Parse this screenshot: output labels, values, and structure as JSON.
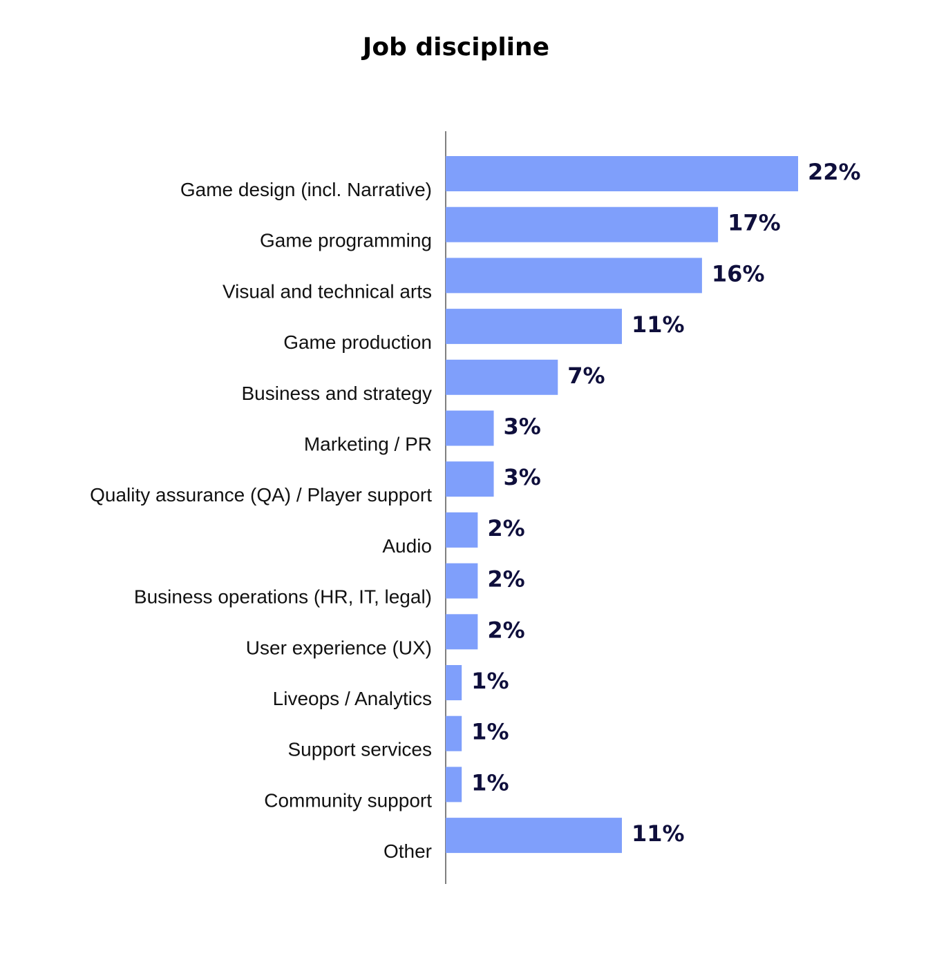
{
  "chart_data": {
    "type": "bar",
    "orientation": "horizontal",
    "title": "Job discipline",
    "xlabel": "",
    "ylabel": "",
    "categories": [
      "Game design (incl. Narrative)",
      "Game programming",
      "Visual and technical arts",
      "Game production",
      "Business and strategy",
      "Marketing / PR",
      "Quality assurance (QA) / Player support",
      "Audio",
      "Business operations (HR, IT, legal)",
      "User experience (UX)",
      "Liveops / Analytics",
      "Support services",
      "Community support",
      "Other"
    ],
    "values": [
      22,
      17,
      16,
      11,
      7,
      3,
      3,
      2,
      2,
      2,
      1,
      1,
      1,
      11
    ],
    "value_labels": [
      "22%",
      "17%",
      "16%",
      "11%",
      "7%",
      "3%",
      "3%",
      "2%",
      "2%",
      "2%",
      "1%",
      "1%",
      "1%",
      "11%"
    ],
    "unit": "%",
    "xlim": [
      0,
      22
    ],
    "grid": false,
    "legend": "none",
    "colors": {
      "bar": "#7f9ffb",
      "value_text": "#0f0f3c",
      "axis": "#555555"
    }
  }
}
